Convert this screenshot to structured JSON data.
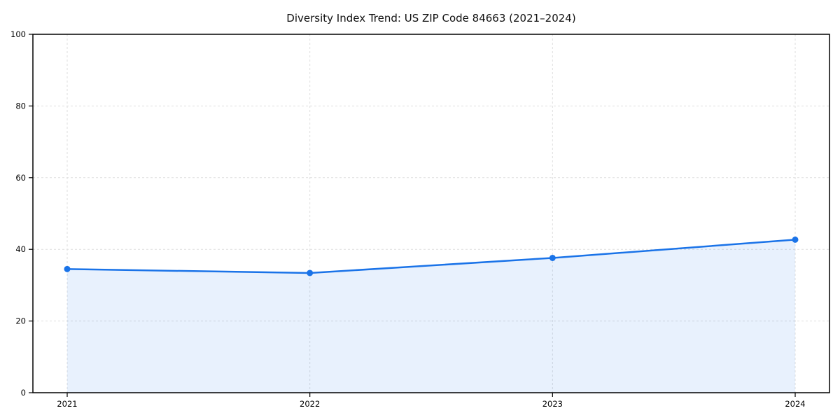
{
  "chart_data": {
    "type": "line",
    "title": "Diversity Index Trend: US ZIP Code 84663 (2021–2024)",
    "x": [
      "2021",
      "2022",
      "2023",
      "2024"
    ],
    "series": [
      {
        "name": "Diversity Index",
        "values": [
          34.5,
          33.4,
          37.6,
          42.7
        ]
      }
    ],
    "xlabel": "",
    "ylabel": "",
    "ylim": [
      0,
      100
    ],
    "yticks": [
      0,
      20,
      40,
      60,
      80,
      100
    ],
    "grid": true,
    "grid_style": "dashed",
    "legend": false,
    "marker": "circle",
    "area_fill": true
  },
  "colors": {
    "line": "#1a73e8",
    "marker": "#1a73e8",
    "fill": "#1a73e8",
    "fill_opacity": 0.1,
    "grid": "#dedede",
    "axis": "#000000",
    "background": "#ffffff"
  }
}
